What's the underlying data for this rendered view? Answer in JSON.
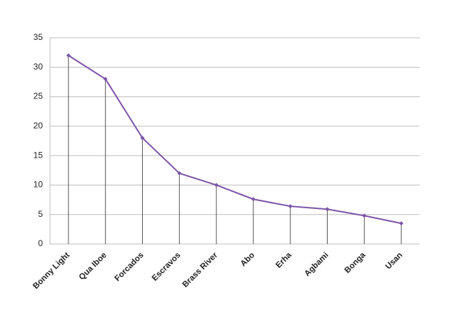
{
  "chart_data": {
    "type": "line",
    "categories": [
      "Bonny Light",
      "Qua Iboe",
      "Forcados",
      "Escravos",
      "Brass River",
      "Abo",
      "Erha",
      "Agbami",
      "Bonga",
      "Usan"
    ],
    "values": [
      32,
      28,
      18,
      12,
      10,
      7.6,
      6.4,
      5.9,
      4.8,
      3.5
    ],
    "color": "#7d55a8",
    "drop_lines": true,
    "ylim": [
      0,
      35
    ],
    "yticks": [
      0,
      5,
      10,
      15,
      20,
      25,
      30,
      35
    ],
    "grid": true
  }
}
